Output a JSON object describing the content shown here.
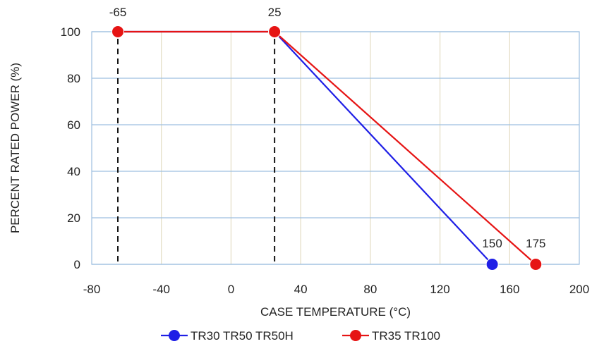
{
  "chart_data": {
    "type": "line",
    "title": "",
    "xlabel": "CASE TEMPERATURE (°C)",
    "ylabel": "PERCENT RATED POWER (%)",
    "xlim": [
      -80,
      200
    ],
    "ylim": [
      0,
      100
    ],
    "xticks": [
      -80,
      -40,
      0,
      40,
      80,
      120,
      160,
      200
    ],
    "yticks": [
      0,
      20,
      40,
      60,
      80,
      100
    ],
    "grid": true,
    "legend_position": "bottom",
    "series": [
      {
        "name": "TR30 TR50 TR50H",
        "color": "#1f1fe6",
        "points": [
          {
            "x": -65,
            "y": 100
          },
          {
            "x": 25,
            "y": 100
          },
          {
            "x": 150,
            "y": 0
          }
        ]
      },
      {
        "name": "TR35 TR100",
        "color": "#e61414",
        "points": [
          {
            "x": -65,
            "y": 100
          },
          {
            "x": 25,
            "y": 100
          },
          {
            "x": 175,
            "y": 0
          }
        ]
      }
    ],
    "annotations": [
      {
        "text": "-65",
        "x": -65,
        "y": 100
      },
      {
        "text": "25",
        "x": 25,
        "y": 100
      },
      {
        "text": "150",
        "x": 150,
        "y": 0
      },
      {
        "text": "175",
        "x": 175,
        "y": 0
      }
    ],
    "reference_lines": [
      {
        "x": -65,
        "style": "dashed"
      },
      {
        "x": 25,
        "style": "dashed"
      }
    ]
  }
}
